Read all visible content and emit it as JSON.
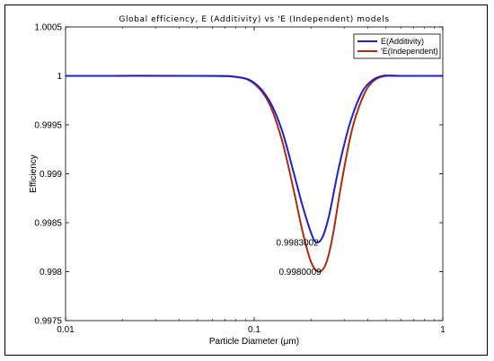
{
  "chart_data": {
    "type": "line",
    "title": "Global efficiency, E (Additivity) vs 'E (Independent) models",
    "xlabel": "Particle Diameter (μm)",
    "ylabel": "Efficiency",
    "x_scale": "log",
    "xlim": [
      0.01,
      1
    ],
    "ylim": [
      0.9975,
      1.0005
    ],
    "grid": false,
    "legend_position": "top-right",
    "x_ticks": [
      {
        "value": 0.01,
        "label": "0.01"
      },
      {
        "value": 0.1,
        "label": "0.1"
      },
      {
        "value": 1,
        "label": "1"
      }
    ],
    "y_ticks": [
      {
        "value": 1.0005,
        "label": "1.0005"
      },
      {
        "value": 1.0,
        "label": "1"
      },
      {
        "value": 0.9995,
        "label": "0.9995"
      },
      {
        "value": 0.999,
        "label": "0.999"
      },
      {
        "value": 0.9985,
        "label": "0.9985"
      },
      {
        "value": 0.998,
        "label": "0.998"
      },
      {
        "value": 0.9975,
        "label": "0.9975"
      }
    ],
    "series": [
      {
        "name": "E(Additivity)",
        "color": "#1f1fd0",
        "x": [
          0.01,
          0.05,
          0.08,
          0.1,
          0.12,
          0.14,
          0.16,
          0.18,
          0.2,
          0.213,
          0.23,
          0.25,
          0.28,
          0.32,
          0.37,
          0.42,
          0.48,
          0.55,
          0.7,
          1.0
        ],
        "y": [
          1.0,
          1.0,
          0.99999,
          0.99993,
          0.99975,
          0.99945,
          0.99905,
          0.99868,
          0.9984,
          0.9983,
          0.99835,
          0.99858,
          0.99905,
          0.9995,
          0.99982,
          0.99995,
          1.0,
          1.0,
          1.0,
          1.0
        ]
      },
      {
        "name": "'E(Independent)",
        "color": "#b02a10",
        "x": [
          0.01,
          0.05,
          0.08,
          0.1,
          0.12,
          0.14,
          0.16,
          0.18,
          0.2,
          0.22,
          0.24,
          0.26,
          0.29,
          0.33,
          0.38,
          0.43,
          0.5,
          0.6,
          0.8,
          1.0
        ],
        "y": [
          1.0,
          1.0,
          0.99999,
          0.99992,
          0.99972,
          0.99935,
          0.99888,
          0.99842,
          0.9981,
          0.998,
          0.99808,
          0.99835,
          0.9989,
          0.99945,
          0.9998,
          0.99995,
          1.0,
          1.0,
          1.0,
          1.0
        ]
      }
    ],
    "annotations": [
      {
        "text": "0.9983002",
        "x": 0.215,
        "y": 0.9983,
        "anchor": "end"
      },
      {
        "text": "0.9980009",
        "x": 0.222,
        "y": 0.998,
        "anchor": "end"
      }
    ]
  }
}
